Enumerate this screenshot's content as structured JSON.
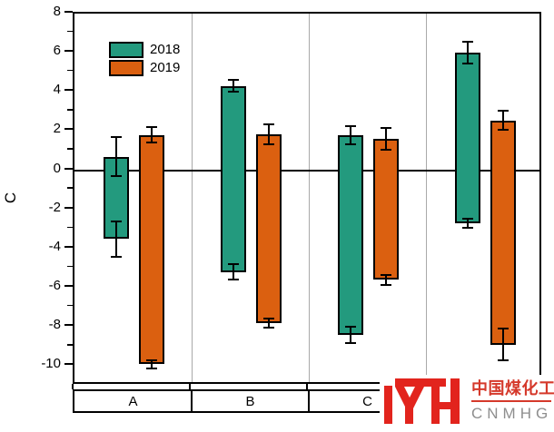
{
  "chart_data": {
    "type": "bar",
    "variant": "floating-range-bars-with-error-bars",
    "title": "",
    "xlabel": "",
    "ylabel": "C",
    "ylim": [
      -11,
      8
    ],
    "y_major_ticks": [
      8,
      6,
      4,
      2,
      0,
      -2,
      -4,
      -6,
      -8,
      -10
    ],
    "y_minor_ticks": [
      7,
      5,
      3,
      1,
      -1,
      -3,
      -5,
      -7,
      -9
    ],
    "categories": [
      "A",
      "B",
      "C",
      ""
    ],
    "grid": "vertical-group-separators",
    "legend_position": "top-left-inside",
    "zero_line": true,
    "series": [
      {
        "name": "2018",
        "color": "#239a7e",
        "bars": [
          {
            "category": "A",
            "low": -3.5,
            "high": 0.7,
            "err_high": 1.0,
            "err_low": 0.9
          },
          {
            "category": "B",
            "low": -5.2,
            "high": 4.3,
            "err_high": 0.3,
            "err_low": 0.4
          },
          {
            "category": "C",
            "low": -8.4,
            "high": 1.8,
            "err_high": 0.45,
            "err_low": 0.4
          },
          {
            "category": "",
            "low": -2.7,
            "high": 6.0,
            "err_high": 0.55,
            "err_low": 0.25
          }
        ]
      },
      {
        "name": "2019",
        "color": "#db6010",
        "bars": [
          {
            "category": "A",
            "low": -9.9,
            "high": 1.8,
            "err_high": 0.4,
            "err_low": 0.2
          },
          {
            "category": "B",
            "low": -7.8,
            "high": 1.85,
            "err_high": 0.5,
            "err_low": 0.25
          },
          {
            "category": "C",
            "low": -5.6,
            "high": 1.6,
            "err_high": 0.55,
            "err_low": 0.25
          },
          {
            "category": "",
            "low": -8.9,
            "high": 2.55,
            "err_high": 0.5,
            "err_low": 0.8
          }
        ]
      }
    ]
  },
  "legend": {
    "items": [
      {
        "label": "2018",
        "color": "#239a7e"
      },
      {
        "label": "2019",
        "color": "#db6010"
      }
    ]
  },
  "watermark": {
    "cn_text": "中国煤化工",
    "latin_text": "CNMHG",
    "logo_color": "#e2241d",
    "text_red": "#d5392b",
    "text_gray": "#8e8e8e"
  },
  "colors": {
    "axis": "#000000",
    "gridline": "#a9a9a9",
    "background": "#ffffff"
  }
}
